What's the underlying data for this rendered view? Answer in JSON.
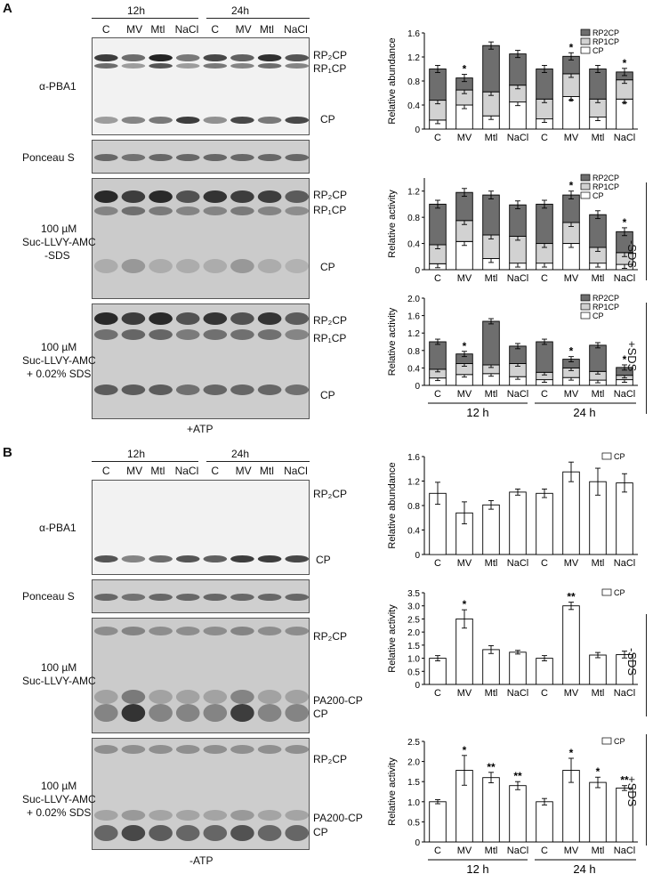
{
  "panelA": {
    "letter": "A",
    "time_headers": [
      "12h",
      "24h"
    ],
    "lanes": [
      "C",
      "MV",
      "Mtl",
      "NaCl",
      "C",
      "MV",
      "Mtl",
      "NaCl"
    ],
    "blot1": {
      "label": "α-PBA1",
      "bands": [
        "RP₂CP",
        "RP₁CP",
        "CP"
      ]
    },
    "blot2": {
      "label": "Ponceau S"
    },
    "blot3": {
      "label_lines": [
        "100 µM",
        "Suc-LLVY-AMC",
        "-SDS"
      ],
      "bands": [
        "RP₂CP",
        "RP₁CP",
        "CP"
      ]
    },
    "blot4": {
      "label_lines": [
        "100 µM",
        "Suc-LLVY-AMC",
        "+ 0.02% SDS"
      ],
      "bands": [
        "RP₂CP",
        "RP₁CP",
        "CP"
      ]
    },
    "footer": "+ATP"
  },
  "panelB": {
    "letter": "B",
    "time_headers": [
      "12h",
      "24h"
    ],
    "lanes": [
      "C",
      "MV",
      "Mtl",
      "NaCl",
      "C",
      "MV",
      "Mtl",
      "NaCl"
    ],
    "blot1": {
      "label": "α-PBA1",
      "bands": [
        "RP₂CP",
        "CP"
      ]
    },
    "blot2": {
      "label": "Ponceau S"
    },
    "blot3": {
      "label_lines": [
        "100 µM",
        "Suc-LLVY-AMC"
      ],
      "bands": [
        "RP₂CP",
        "PA200-CP",
        "CP"
      ]
    },
    "blot4": {
      "label_lines": [
        "100 µM",
        "Suc-LLVY-AMC",
        "+ 0.02% SDS"
      ],
      "bands": [
        "RP₂CP",
        "PA200-CP",
        "CP"
      ]
    },
    "footer": "-ATP"
  },
  "group_labels": [
    "12 h",
    "24 h"
  ],
  "side_labels": {
    "minus_sds": "-SDS",
    "plus_sds": "+SDS"
  },
  "colors": {
    "rp2cp": "#6e6e6e",
    "rp1cp": "#d2d2d2",
    "cp": "#ffffff",
    "bar_stroke": "#000000"
  },
  "chart_data": [
    {
      "type": "bar",
      "stacked": true,
      "panel": "A",
      "categories": [
        "C",
        "MV",
        "Mtl",
        "NaCl",
        "C",
        "MV",
        "Mtl",
        "NaCl"
      ],
      "ylabel": "Relative abundance",
      "ylim": [
        0,
        1.6
      ],
      "yticks": [
        "0",
        "0.4",
        "0.8",
        "1.2",
        "1.6"
      ],
      "series": [
        {
          "name": "RP2CP",
          "values": [
            0.52,
            0.2,
            0.77,
            0.52,
            0.5,
            0.29,
            0.5,
            0.13
          ]
        },
        {
          "name": "RP1CP",
          "values": [
            0.33,
            0.25,
            0.4,
            0.28,
            0.33,
            0.38,
            0.3,
            0.32
          ]
        },
        {
          "name": "CP",
          "values": [
            0.15,
            0.4,
            0.22,
            0.45,
            0.17,
            0.54,
            0.2,
            0.5
          ]
        }
      ],
      "significance": [
        "",
        "*",
        "",
        "",
        "",
        "*",
        "",
        "*"
      ],
      "inner_significance": [
        "",
        "",
        "",
        "",
        "",
        "*",
        "",
        "*"
      ],
      "legend": [
        "RP2CP",
        "RP1CP",
        "CP"
      ]
    },
    {
      "type": "bar",
      "stacked": true,
      "panel": "A",
      "categories": [
        "C",
        "MV",
        "Mtl",
        "NaCl",
        "C",
        "MV",
        "Mtl",
        "NaCl"
      ],
      "ylabel": "Relative activity",
      "condition": "-SDS",
      "ylim": [
        0,
        1.4
      ],
      "yticks": [
        "0",
        "0.4",
        "0.8",
        "1.2"
      ],
      "series": [
        {
          "name": "RP2CP",
          "values": [
            0.62,
            0.43,
            0.61,
            0.48,
            0.6,
            0.42,
            0.5,
            0.32
          ]
        },
        {
          "name": "RP1CP",
          "values": [
            0.29,
            0.32,
            0.36,
            0.41,
            0.3,
            0.32,
            0.24,
            0.18
          ]
        },
        {
          "name": "CP",
          "values": [
            0.09,
            0.43,
            0.17,
            0.1,
            0.1,
            0.4,
            0.1,
            0.08
          ]
        }
      ],
      "significance": [
        "",
        "",
        "",
        "",
        "",
        "*",
        "",
        "*"
      ],
      "legend": [
        "RP2CP",
        "RP1CP",
        "CP"
      ]
    },
    {
      "type": "bar",
      "stacked": true,
      "panel": "A",
      "categories": [
        "C",
        "MV",
        "Mtl",
        "NaCl",
        "C",
        "MV",
        "Mtl",
        "NaCl"
      ],
      "ylabel": "Relative activity",
      "condition": "+SDS",
      "ylim": [
        0,
        2.0
      ],
      "yticks": [
        "0",
        "0.4",
        "0.8",
        "1.2",
        "1.6",
        "2.0"
      ],
      "series": [
        {
          "name": "RP2CP",
          "values": [
            0.63,
            0.22,
            1.0,
            0.4,
            0.7,
            0.2,
            0.6,
            0.18
          ]
        },
        {
          "name": "RP1CP",
          "values": [
            0.2,
            0.25,
            0.2,
            0.3,
            0.17,
            0.22,
            0.2,
            0.1
          ]
        },
        {
          "name": "CP",
          "values": [
            0.17,
            0.25,
            0.27,
            0.2,
            0.13,
            0.18,
            0.12,
            0.13
          ]
        }
      ],
      "significance": [
        "",
        "*",
        "",
        "",
        "",
        "*",
        "",
        "*"
      ],
      "legend": [
        "RP2CP",
        "RP1CP",
        "CP"
      ]
    },
    {
      "type": "bar",
      "panel": "B",
      "categories": [
        "C",
        "MV",
        "Mtl",
        "NaCl",
        "C",
        "MV",
        "Mtl",
        "NaCl"
      ],
      "ylabel": "Relative abundance",
      "ylim": [
        0,
        1.6
      ],
      "yticks": [
        "0",
        "0.4",
        "0.8",
        "1.2",
        "1.6"
      ],
      "series": [
        {
          "name": "CP",
          "values": [
            1.0,
            0.68,
            0.81,
            1.02,
            1.0,
            1.35,
            1.19,
            1.17
          ],
          "errors": [
            0.18,
            0.18,
            0.07,
            0.05,
            0.07,
            0.16,
            0.22,
            0.15
          ]
        }
      ],
      "significance": [
        "",
        "",
        "",
        "",
        "",
        "",
        "",
        ""
      ],
      "legend": [
        "CP"
      ]
    },
    {
      "type": "bar",
      "panel": "B",
      "categories": [
        "C",
        "MV",
        "Mtl",
        "NaCl",
        "C",
        "MV",
        "Mtl",
        "NaCl"
      ],
      "ylabel": "Relative activity",
      "condition": "-SDS",
      "ylim": [
        0,
        3.5
      ],
      "yticks": [
        "0",
        "0.5",
        "1.0",
        "1.5",
        "2.0",
        "2.5",
        "3.0",
        "3.5"
      ],
      "series": [
        {
          "name": "CP",
          "values": [
            1.0,
            2.5,
            1.33,
            1.23,
            1.0,
            3.0,
            1.12,
            1.14
          ],
          "errors": [
            0.1,
            0.35,
            0.15,
            0.07,
            0.1,
            0.14,
            0.1,
            0.13
          ]
        }
      ],
      "significance": [
        "",
        "*",
        "",
        "",
        "",
        "**",
        "",
        ""
      ],
      "legend": [
        "CP"
      ]
    },
    {
      "type": "bar",
      "panel": "B",
      "categories": [
        "C",
        "MV",
        "Mtl",
        "NaCl",
        "C",
        "MV",
        "Mtl",
        "NaCl"
      ],
      "ylabel": "Relative activity",
      "condition": "+SDS",
      "ylim": [
        0,
        2.5
      ],
      "yticks": [
        "0",
        "0.5",
        "1.0",
        "1.5",
        "2.0",
        "2.5"
      ],
      "series": [
        {
          "name": "CP",
          "values": [
            1.0,
            1.78,
            1.6,
            1.4,
            1.0,
            1.78,
            1.48,
            1.34
          ],
          "errors": [
            0.05,
            0.37,
            0.13,
            0.1,
            0.08,
            0.3,
            0.13,
            0.06
          ]
        }
      ],
      "significance": [
        "",
        "*",
        "**",
        "**",
        "",
        "*",
        "*",
        "**"
      ],
      "legend": [
        "CP"
      ]
    }
  ]
}
